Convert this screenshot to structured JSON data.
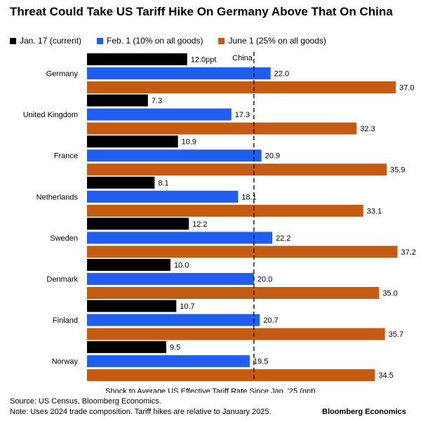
{
  "title": "Threat Could Take US Tariff Hike On Germany Above That On China",
  "legend": [
    {
      "label": "Jan. 17 (current)",
      "color": "#000000"
    },
    {
      "label": "Feb. 1 (10% on all goods)",
      "color": "#1f5ef0"
    },
    {
      "label": "June 1 (25% on all goods)",
      "color": "#c55a11"
    }
  ],
  "source": "Source: US Census, Bloomberg Economics.",
  "note": "Note: Uses 2024 trade composition. Tariff hikes are relative to January 2025.",
  "brand": "Bloomberg Economics",
  "chart_data": {
    "type": "bar",
    "orientation": "horizontal",
    "title": "Threat Could Take US Tariff Hike On Germany Above That On China",
    "xlabel": "Shock to Average US Effective Tariff Rate Since Jan. '25 (ppt)",
    "xlim": [
      0,
      38
    ],
    "grid": false,
    "legend_position": "top",
    "categories": [
      "Germany",
      "United Kingdom",
      "France",
      "Netherlands",
      "Sweden",
      "Denmark",
      "Finland",
      "Norway"
    ],
    "series": [
      {
        "name": "Jan. 17 (current)",
        "color": "#000000",
        "values": [
          12.0,
          7.3,
          10.9,
          8.1,
          12.2,
          10.0,
          10.7,
          9.5
        ],
        "labels": [
          "12.0ppt",
          "7.3",
          "10.9",
          "8.1",
          "12.2",
          "10.0",
          "10.7",
          "9.5"
        ]
      },
      {
        "name": "Feb. 1 (10% on all goods)",
        "color": "#1f5ef0",
        "values": [
          22.0,
          17.3,
          20.9,
          18.1,
          22.2,
          20.0,
          20.7,
          19.5
        ],
        "labels": [
          "22.0",
          "17.3",
          "20.9",
          "18.1",
          "22.2",
          "20.0",
          "20.7",
          "19.5"
        ]
      },
      {
        "name": "June 1 (25% on all goods)",
        "color": "#c55a11",
        "values": [
          37.0,
          32.3,
          35.9,
          33.1,
          37.2,
          35.0,
          35.7,
          34.5
        ],
        "labels": [
          "37.0",
          "32.3",
          "35.9",
          "33.1",
          "37.2",
          "35.0",
          "35.7",
          "34.5"
        ]
      }
    ],
    "reference_line": {
      "label": "China",
      "value": 20.0,
      "style": "dashed"
    }
  }
}
